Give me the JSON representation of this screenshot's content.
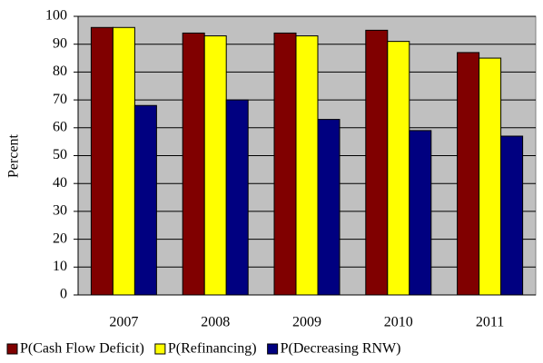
{
  "chart_data": {
    "type": "bar",
    "y_label": "Percent",
    "categories": [
      "2007",
      "2008",
      "2009",
      "2010",
      "2011"
    ],
    "series": [
      {
        "name": "P(Cash Flow Deficit)",
        "color": "#800000",
        "values": [
          96,
          94,
          94,
          95,
          87
        ]
      },
      {
        "name": "P(Refinancing)",
        "color": "#ffff00",
        "values": [
          96,
          93,
          93,
          91,
          85
        ]
      },
      {
        "name": "P(Decreasing RNW)",
        "color": "#000080",
        "values": [
          68,
          70,
          63,
          59,
          57
        ]
      }
    ],
    "ylim": [
      0,
      100
    ],
    "yticks": [
      0,
      10,
      20,
      30,
      40,
      50,
      60,
      70,
      80,
      90,
      100
    ],
    "grid": true,
    "plot_background": "#c0c0c0"
  }
}
